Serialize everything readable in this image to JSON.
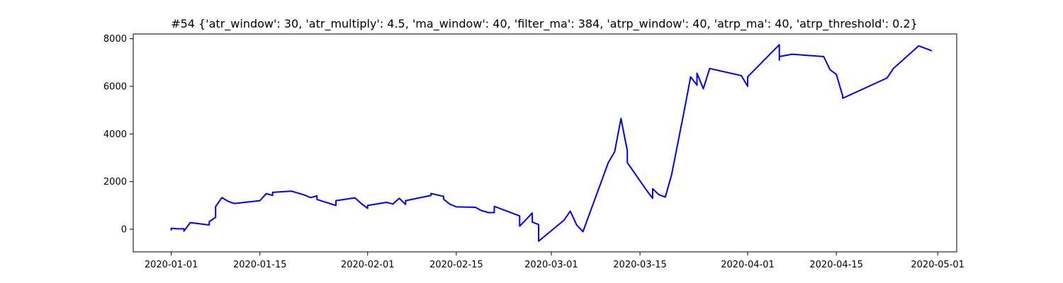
{
  "chart_data": {
    "type": "line",
    "title": "#54 {'atr_window': 30, 'atr_multiply': 4.5, 'ma_window': 40, 'filter_ma': 384, 'atrp_window': 40, 'atrp_ma': 40, 'atrp_threshold': 0.2}",
    "xlabel": "",
    "ylabel": "",
    "grid": false,
    "legend": "none",
    "xlim": [
      "2019-12-26",
      "2020-05-04"
    ],
    "ylim": [
      -950,
      8200
    ],
    "x_ticks": [
      "2020-01-01",
      "2020-01-15",
      "2020-02-01",
      "2020-02-15",
      "2020-03-01",
      "2020-03-15",
      "2020-04-01",
      "2020-04-15",
      "2020-05-01"
    ],
    "y_ticks": [
      0,
      2000,
      4000,
      6000,
      8000
    ],
    "series": [
      {
        "color": "#0000ff",
        "points": [
          [
            "2020-01-01",
            -30
          ],
          [
            "2020-01-01",
            40
          ],
          [
            "2020-01-02",
            20
          ],
          [
            "2020-01-03",
            20
          ],
          [
            "2020-01-03",
            -80
          ],
          [
            "2020-01-04",
            280
          ],
          [
            "2020-01-07",
            180
          ],
          [
            "2020-01-07",
            320
          ],
          [
            "2020-01-08",
            500
          ],
          [
            "2020-01-08",
            950
          ],
          [
            "2020-01-09",
            1330
          ],
          [
            "2020-01-10",
            1170
          ],
          [
            "2020-01-11",
            1080
          ],
          [
            "2020-01-15",
            1200
          ],
          [
            "2020-01-16",
            1500
          ],
          [
            "2020-01-17",
            1420
          ],
          [
            "2020-01-17",
            1550
          ],
          [
            "2020-01-20",
            1600
          ],
          [
            "2020-01-22",
            1440
          ],
          [
            "2020-01-23",
            1330
          ],
          [
            "2020-01-24",
            1400
          ],
          [
            "2020-01-24",
            1250
          ],
          [
            "2020-01-27",
            1000
          ],
          [
            "2020-01-27",
            1200
          ],
          [
            "2020-01-30",
            1320
          ],
          [
            "2020-01-31",
            1080
          ],
          [
            "2020-02-01",
            880
          ],
          [
            "2020-02-01",
            1000
          ],
          [
            "2020-02-04",
            1130
          ],
          [
            "2020-02-05",
            1060
          ],
          [
            "2020-02-06",
            1300
          ],
          [
            "2020-02-07",
            1040
          ],
          [
            "2020-02-07",
            1200
          ],
          [
            "2020-02-11",
            1420
          ],
          [
            "2020-02-11",
            1500
          ],
          [
            "2020-02-13",
            1380
          ],
          [
            "2020-02-13",
            1260
          ],
          [
            "2020-02-14",
            1050
          ],
          [
            "2020-02-15",
            940
          ],
          [
            "2020-02-18",
            920
          ],
          [
            "2020-02-19",
            780
          ],
          [
            "2020-02-20",
            710
          ],
          [
            "2020-02-20",
            700
          ],
          [
            "2020-02-21",
            700
          ],
          [
            "2020-02-21",
            960
          ],
          [
            "2020-02-25",
            560
          ],
          [
            "2020-02-25",
            130
          ],
          [
            "2020-02-27",
            680
          ],
          [
            "2020-02-27",
            300
          ],
          [
            "2020-02-28",
            200
          ],
          [
            "2020-02-28",
            -500
          ],
          [
            "2020-03-03",
            380
          ],
          [
            "2020-03-04",
            760
          ],
          [
            "2020-03-05",
            180
          ],
          [
            "2020-03-06",
            -100
          ],
          [
            "2020-03-10",
            2800
          ],
          [
            "2020-03-11",
            3250
          ],
          [
            "2020-03-12",
            4650
          ],
          [
            "2020-03-13",
            3300
          ],
          [
            "2020-03-13",
            2800
          ],
          [
            "2020-03-16",
            1650
          ],
          [
            "2020-03-17",
            1300
          ],
          [
            "2020-03-17",
            1700
          ],
          [
            "2020-03-18",
            1450
          ],
          [
            "2020-03-19",
            1350
          ],
          [
            "2020-03-20",
            2300
          ],
          [
            "2020-03-22",
            5000
          ],
          [
            "2020-03-23",
            6400
          ],
          [
            "2020-03-24",
            6050
          ],
          [
            "2020-03-24",
            6550
          ],
          [
            "2020-03-25",
            5900
          ],
          [
            "2020-03-26",
            6750
          ],
          [
            "2020-03-31",
            6450
          ],
          [
            "2020-04-01",
            6000
          ],
          [
            "2020-04-01",
            6400
          ],
          [
            "2020-04-06",
            7750
          ],
          [
            "2020-04-06",
            7100
          ],
          [
            "2020-04-06",
            7250
          ],
          [
            "2020-04-08",
            7350
          ],
          [
            "2020-04-13",
            7250
          ],
          [
            "2020-04-14",
            6700
          ],
          [
            "2020-04-15",
            6500
          ],
          [
            "2020-04-16",
            5600
          ],
          [
            "2020-04-16",
            5500
          ],
          [
            "2020-04-23",
            6350
          ],
          [
            "2020-04-24",
            6750
          ],
          [
            "2020-04-28",
            7700
          ],
          [
            "2020-04-30",
            7500
          ]
        ]
      }
    ]
  }
}
